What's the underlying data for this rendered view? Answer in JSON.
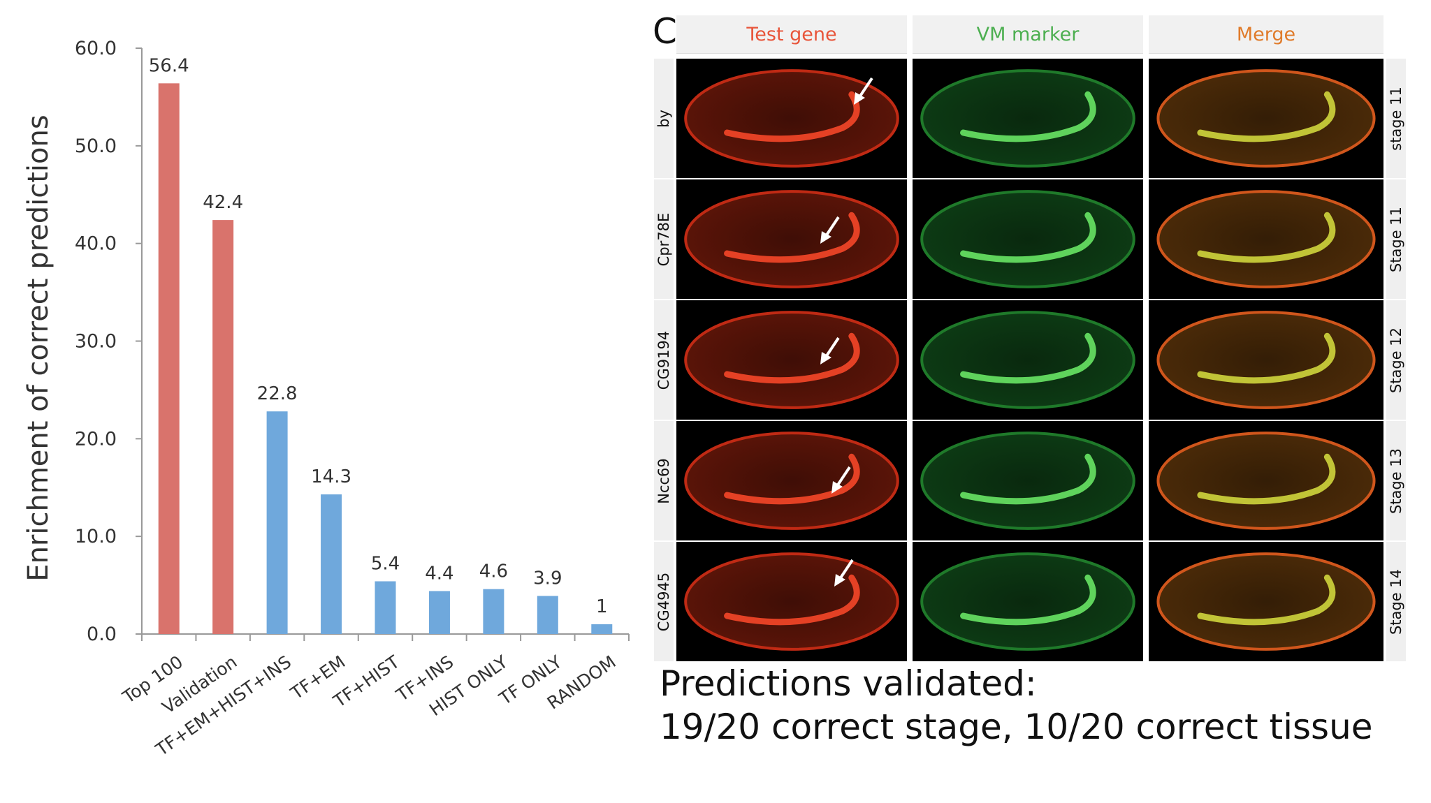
{
  "chart_data": {
    "type": "bar",
    "categories": [
      "Top 100",
      "Validation",
      "TF+EM+HIST+INS",
      "TF+EM",
      "TF+HIST",
      "TF+INS",
      "HIST ONLY",
      "TF ONLY",
      "RANDOM"
    ],
    "values": [
      56.4,
      42.4,
      22.8,
      14.3,
      5.4,
      4.4,
      4.6,
      3.9,
      1
    ],
    "value_labels": [
      "56.4",
      "42.4",
      "22.8",
      "14.3",
      "5.4",
      "4.4",
      "4.6",
      "3.9",
      "1"
    ],
    "bar_colors": [
      "#d9736c",
      "#d9736c",
      "#6fa8dc",
      "#6fa8dc",
      "#6fa8dc",
      "#6fa8dc",
      "#6fa8dc",
      "#6fa8dc",
      "#6fa8dc"
    ],
    "ylabel": "Enrichment of correct predictions",
    "xlabel": "",
    "title": "",
    "ylim": [
      0,
      60
    ],
    "yticks": [
      "0.0",
      "10.0",
      "20.0",
      "30.0",
      "40.0",
      "50.0",
      "60.0"
    ],
    "grid": false
  },
  "panel": {
    "label": "C)",
    "columns": [
      {
        "title": "Test gene",
        "color": "#e8553a"
      },
      {
        "title": "VM marker",
        "color": "#4caf50"
      },
      {
        "title": "Merge",
        "color": "#e07b2a"
      }
    ],
    "rows": [
      {
        "gene": "by",
        "stage": "stage 11",
        "arrow": true
      },
      {
        "gene": "Cpr78E",
        "stage": "Stage 11",
        "arrow": true
      },
      {
        "gene": "CG9194",
        "stage": "Stage 12",
        "arrow": true
      },
      {
        "gene": "Ncc69",
        "stage": "Stage 13",
        "arrow": true
      },
      {
        "gene": "CG4945",
        "stage": "Stage 14",
        "arrow": true
      }
    ]
  },
  "caption": {
    "line1": "Predictions validated:",
    "line2": "19/20 correct stage, 10/20 correct tissue"
  }
}
